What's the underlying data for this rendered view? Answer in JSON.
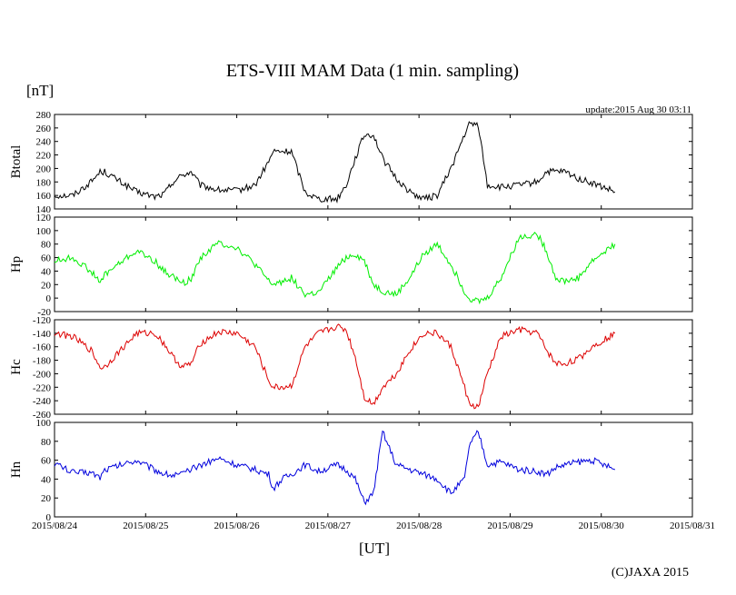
{
  "title": "ETS-VIII MAM Data (1 min. sampling)",
  "unit_label": "[nT]",
  "update_text": "update:2015 Aug 30 03:11",
  "x_axis_label": "[UT]",
  "copyright": "(C)JAXA 2015",
  "chart_data": {
    "type": "line",
    "title": "ETS-VIII MAM Data (1 min. sampling)",
    "xlabel": "[UT]",
    "x_tick_labels": [
      "2015/08/24",
      "2015/08/25",
      "2015/08/26",
      "2015/08/27",
      "2015/08/28",
      "2015/08/29",
      "2015/08/30",
      "2015/08/31"
    ],
    "x_range_days": [
      0,
      7
    ],
    "x_days": [
      0.0,
      0.2,
      0.4,
      0.5,
      0.55,
      0.9,
      1.1,
      1.2,
      1.3,
      1.4,
      1.5,
      1.6,
      1.8,
      2.0,
      2.2,
      2.35,
      2.4,
      2.5,
      2.6,
      2.75,
      2.9,
      3.1,
      3.2,
      3.3,
      3.4,
      3.5,
      3.6,
      3.75,
      3.9,
      4.05,
      4.2,
      4.35,
      4.5,
      4.55,
      4.65,
      4.75,
      4.9,
      5.1,
      5.3,
      5.4,
      5.5,
      5.6,
      5.75,
      5.9,
      6.15
    ],
    "series": [
      {
        "name": "Btotal",
        "color": "#000000",
        "yticks": [
          140,
          160,
          180,
          200,
          220,
          240,
          260,
          280
        ],
        "ylim": [
          140,
          280
        ],
        "values": [
          160,
          160,
          180,
          195,
          195,
          165,
          158,
          162,
          180,
          190,
          195,
          175,
          168,
          167,
          175,
          210,
          225,
          225,
          225,
          165,
          155,
          155,
          175,
          215,
          250,
          250,
          215,
          185,
          165,
          155,
          160,
          200,
          250,
          265,
          265,
          175,
          172,
          175,
          180,
          195,
          195,
          195,
          185,
          178,
          165
        ]
      },
      {
        "name": "Hp",
        "color": "#00ee00",
        "yticks": [
          -20,
          0,
          20,
          40,
          60,
          80,
          100,
          120
        ],
        "ylim": [
          -20,
          120
        ],
        "values": [
          55,
          60,
          40,
          22,
          35,
          70,
          55,
          40,
          32,
          22,
          28,
          60,
          82,
          75,
          50,
          25,
          20,
          25,
          30,
          5,
          8,
          45,
          60,
          65,
          55,
          20,
          10,
          5,
          30,
          65,
          80,
          50,
          10,
          0,
          -5,
          0,
          30,
          90,
          95,
          70,
          30,
          25,
          30,
          55,
          80
        ]
      },
      {
        "name": "Hc",
        "color": "#dd0000",
        "yticks": [
          -260,
          -240,
          -220,
          -200,
          -180,
          -160,
          -140,
          -120
        ],
        "ylim": [
          -260,
          -120
        ],
        "values": [
          -140,
          -145,
          -165,
          -190,
          -190,
          -140,
          -140,
          -155,
          -175,
          -190,
          -185,
          -155,
          -138,
          -140,
          -160,
          -210,
          -220,
          -220,
          -218,
          -160,
          -140,
          -130,
          -135,
          -175,
          -235,
          -245,
          -220,
          -200,
          -165,
          -140,
          -140,
          -160,
          -220,
          -245,
          -250,
          -200,
          -145,
          -135,
          -140,
          -165,
          -185,
          -185,
          -178,
          -160,
          -140
        ]
      },
      {
        "name": "Hn",
        "color": "#0000dd",
        "yticks": [
          0,
          20,
          40,
          60,
          80,
          100
        ],
        "ylim": [
          0,
          100
        ],
        "values": [
          57,
          47,
          47,
          42,
          50,
          60,
          50,
          46,
          44,
          45,
          50,
          55,
          62,
          55,
          50,
          45,
          30,
          40,
          45,
          55,
          48,
          55,
          50,
          40,
          15,
          25,
          90,
          55,
          50,
          45,
          40,
          25,
          40,
          75,
          90,
          55,
          58,
          50,
          48,
          45,
          52,
          55,
          58,
          60,
          50
        ]
      }
    ]
  }
}
